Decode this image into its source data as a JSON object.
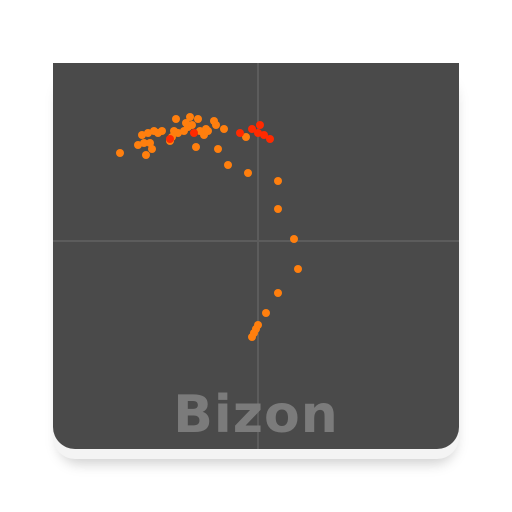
{
  "brand": {
    "name": "Bizon"
  },
  "colors": {
    "tile": "#4a4a4a",
    "axes": "#5c5c5c",
    "brand_text": "#7b7b7b",
    "point_primary": "#ff7f0e",
    "point_hot": "#ff2a00"
  },
  "chart_data": {
    "type": "scatter",
    "title": "",
    "xlabel": "",
    "ylabel": "",
    "xlim": [
      -1,
      1
    ],
    "ylim": [
      -1,
      1
    ],
    "grid": false,
    "axes_through_origin": true,
    "series": [
      {
        "color": "#ff7f0e",
        "points": [
          [
            -0.69,
            0.44
          ],
          [
            -0.6,
            0.48
          ],
          [
            -0.58,
            0.53
          ],
          [
            -0.57,
            0.49
          ],
          [
            -0.56,
            0.43
          ],
          [
            -0.55,
            0.54
          ],
          [
            -0.54,
            0.49
          ],
          [
            -0.53,
            0.46
          ],
          [
            -0.52,
            0.55
          ],
          [
            -0.5,
            0.54
          ],
          [
            -0.48,
            0.55
          ],
          [
            -0.44,
            0.5
          ],
          [
            -0.43,
            0.52
          ],
          [
            -0.42,
            0.55
          ],
          [
            -0.41,
            0.61
          ],
          [
            -0.4,
            0.54
          ],
          [
            -0.37,
            0.55
          ],
          [
            -0.36,
            0.59
          ],
          [
            -0.35,
            0.57
          ],
          [
            -0.34,
            0.62
          ],
          [
            -0.33,
            0.58
          ],
          [
            -0.31,
            0.47
          ],
          [
            -0.3,
            0.61
          ],
          [
            -0.29,
            0.55
          ],
          [
            -0.27,
            0.53
          ],
          [
            -0.26,
            0.56
          ],
          [
            -0.25,
            0.55
          ],
          [
            -0.22,
            0.6
          ],
          [
            -0.21,
            0.58
          ],
          [
            -0.2,
            0.46
          ],
          [
            -0.17,
            0.56
          ],
          [
            -0.15,
            0.38
          ],
          [
            -0.05,
            0.34
          ],
          [
            0.1,
            0.3
          ],
          [
            0.1,
            0.16
          ],
          [
            0.18,
            0.01
          ],
          [
            0.2,
            -0.14
          ],
          [
            0.1,
            -0.26
          ],
          [
            0.04,
            -0.36
          ],
          [
            0.0,
            -0.42
          ],
          [
            -0.01,
            -0.44
          ],
          [
            -0.02,
            -0.46
          ],
          [
            -0.03,
            -0.48
          ],
          [
            -0.06,
            0.52
          ]
        ]
      },
      {
        "color": "#ff2a00",
        "points": [
          [
            -0.44,
            0.51
          ],
          [
            -0.32,
            0.54
          ],
          [
            -0.09,
            0.54
          ],
          [
            -0.03,
            0.56
          ],
          [
            0.0,
            0.54
          ],
          [
            0.01,
            0.58
          ],
          [
            0.03,
            0.53
          ],
          [
            0.06,
            0.51
          ]
        ]
      }
    ]
  }
}
